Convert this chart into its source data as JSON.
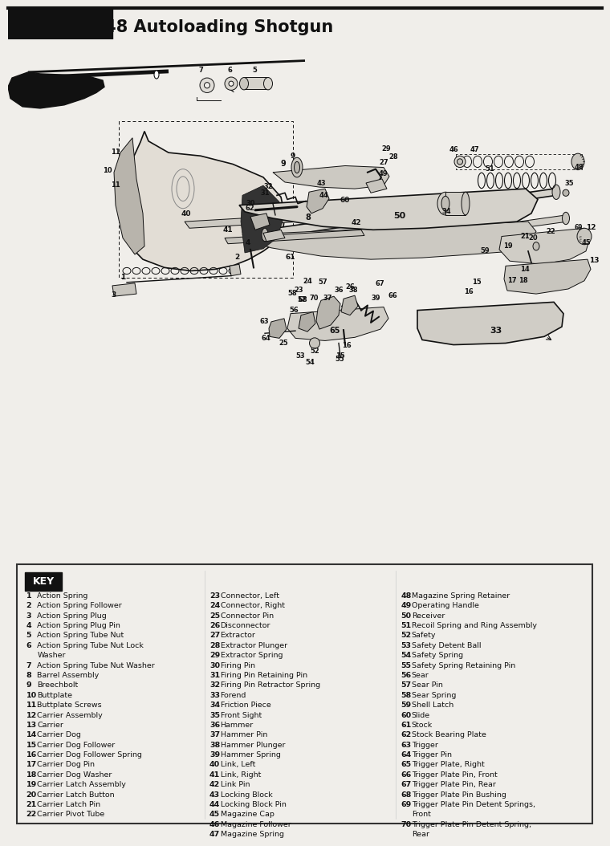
{
  "title": "Model 11-48 Autoloading Shotgun",
  "bg": "#f0eeea",
  "dark": "#111111",
  "gray": "#555555",
  "light_fill": "#d8d5ce",
  "medium_fill": "#c8c5be",
  "parts_col1": [
    [
      1,
      "Action Spring"
    ],
    [
      2,
      "Action Spring Follower"
    ],
    [
      3,
      "Action Spring Plug"
    ],
    [
      4,
      "Action Spring Plug Pin"
    ],
    [
      5,
      "Action Spring Tube Nut"
    ],
    [
      6,
      "Action Spring Tube Nut Lock"
    ],
    [
      6,
      "Washer"
    ],
    [
      7,
      "Action Spring Tube Nut Washer"
    ],
    [
      8,
      "Barrel Assembly"
    ],
    [
      9,
      "Breechbolt"
    ],
    [
      10,
      "Buttplate"
    ],
    [
      11,
      "Buttplate Screws"
    ],
    [
      12,
      "Carrier Assembly"
    ],
    [
      13,
      "Carrier"
    ],
    [
      14,
      "Carrier Dog"
    ],
    [
      15,
      "Carrier Dog Follower"
    ],
    [
      16,
      "Carrier Dog Follower Spring"
    ],
    [
      17,
      "Carrier Dog Pin"
    ],
    [
      18,
      "Carrier Dog Washer"
    ],
    [
      19,
      "Carrier Latch Assembly"
    ],
    [
      20,
      "Carrier Latch Button"
    ],
    [
      21,
      "Carrier Latch Pin"
    ],
    [
      22,
      "Carrier Pivot Tube"
    ]
  ],
  "parts_col2": [
    [
      23,
      "Connector, Left"
    ],
    [
      24,
      "Connector, Right"
    ],
    [
      25,
      "Connector Pin"
    ],
    [
      26,
      "Disconnector"
    ],
    [
      27,
      "Extractor"
    ],
    [
      28,
      "Extractor Plunger"
    ],
    [
      29,
      "Extractor Spring"
    ],
    [
      30,
      "Firing Pin"
    ],
    [
      31,
      "Firing Pin Retaining Pin"
    ],
    [
      32,
      "Firing Pin Retractor Spring"
    ],
    [
      33,
      "Forend"
    ],
    [
      34,
      "Friction Piece"
    ],
    [
      35,
      "Front Sight"
    ],
    [
      36,
      "Hammer"
    ],
    [
      37,
      "Hammer Pin"
    ],
    [
      38,
      "Hammer Plunger"
    ],
    [
      39,
      "Hammer Spring"
    ],
    [
      40,
      "Link, Left"
    ],
    [
      41,
      "Link, Right"
    ],
    [
      42,
      "Link Pin"
    ],
    [
      43,
      "Locking Block"
    ],
    [
      44,
      "Locking Block Pin"
    ],
    [
      45,
      "Magazine Cap"
    ],
    [
      46,
      "Magazine Follower"
    ],
    [
      47,
      "Magazine Spring"
    ]
  ],
  "parts_col3": [
    [
      48,
      "Magazine Spring Retainer"
    ],
    [
      49,
      "Operating Handle"
    ],
    [
      50,
      "Receiver"
    ],
    [
      51,
      "Recoil Spring and Ring Assembly"
    ],
    [
      52,
      "Safety"
    ],
    [
      53,
      "Safety Detent Ball"
    ],
    [
      54,
      "Safety Spring"
    ],
    [
      55,
      "Safety Spring Retaining Pin"
    ],
    [
      56,
      "Sear"
    ],
    [
      57,
      "Sear Pin"
    ],
    [
      58,
      "Sear Spring"
    ],
    [
      59,
      "Shell Latch"
    ],
    [
      60,
      "Slide"
    ],
    [
      61,
      "Stock"
    ],
    [
      62,
      "Stock Bearing Plate"
    ],
    [
      63,
      "Trigger"
    ],
    [
      64,
      "Trigger Pin"
    ],
    [
      65,
      "Trigger Plate, Right"
    ],
    [
      66,
      "Trigger Plate Pin, Front"
    ],
    [
      67,
      "Trigger Plate Pin, Rear"
    ],
    [
      68,
      "Trigger Plate Pin Bushing"
    ],
    [
      69,
      "Trigger Plate Pin Detent Springs,"
    ],
    [
      69,
      "Front"
    ],
    [
      70,
      "Trigger Plate Pin Detent Spring,"
    ],
    [
      70,
      "Rear"
    ]
  ]
}
